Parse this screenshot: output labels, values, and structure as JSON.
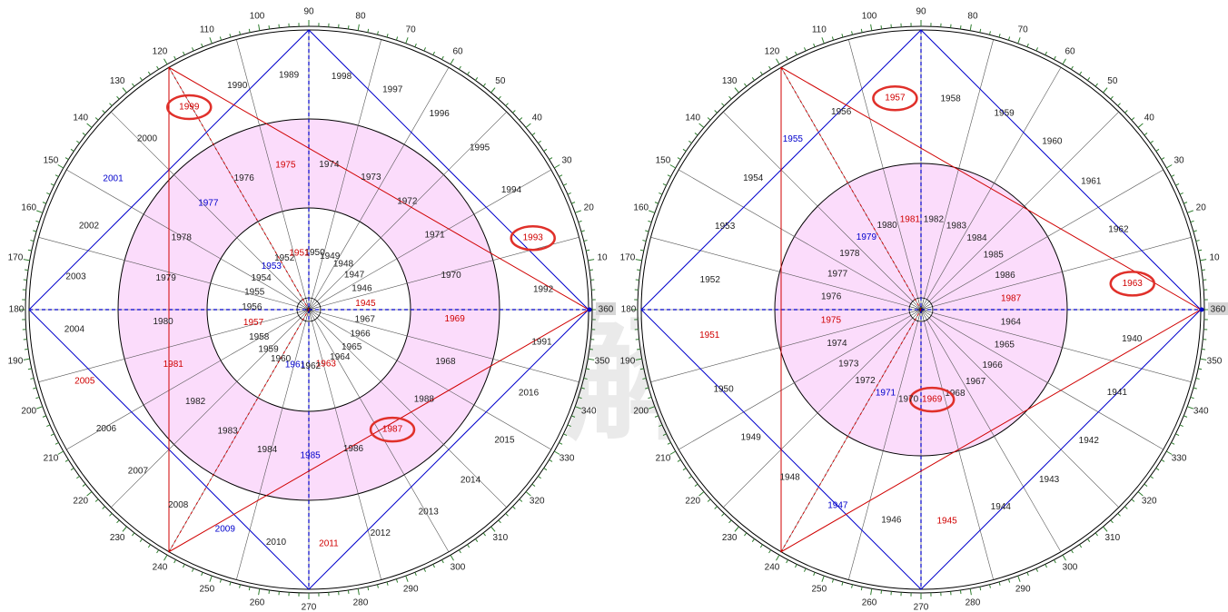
{
  "colors": {
    "black": "#222222",
    "red": "#d00000",
    "blue": "#0000cc",
    "pink_band": "#fbdcfb",
    "tick_green": "#2e7d2e",
    "highlight_ellipse": "#e0302a",
    "marker_bg": "#d6d6d6"
  },
  "watermark": "神臣解盘",
  "degree_labels": [
    "10",
    "20",
    "30",
    "40",
    "50",
    "60",
    "70",
    "80",
    "90",
    "100",
    "110",
    "120",
    "130",
    "140",
    "150",
    "160",
    "170",
    "180",
    "190",
    "200",
    "210",
    "220",
    "230",
    "240",
    "250",
    "260",
    "270",
    "280",
    "290",
    "300",
    "310",
    "320",
    "330",
    "340",
    "350",
    "360"
  ],
  "wheels": [
    {
      "name": "left-wheel",
      "marker_180": "180",
      "marker_360": "360",
      "highlight_years": [
        "1999",
        "1993",
        "1987"
      ],
      "outer_ring": [
        {
          "y": "1998",
          "c": "k"
        },
        {
          "y": "1997",
          "c": "k"
        },
        {
          "y": "1996",
          "c": "k"
        },
        {
          "y": "1995",
          "c": "k"
        },
        {
          "y": "1994",
          "c": "k"
        },
        {
          "y": "1993",
          "c": "r"
        },
        {
          "y": "1992",
          "c": "k"
        },
        {
          "y": "1991",
          "c": "k"
        },
        {
          "y": "2016",
          "c": "k"
        },
        {
          "y": "2015",
          "c": "k"
        },
        {
          "y": "2014",
          "c": "k"
        },
        {
          "y": "2013",
          "c": "k"
        },
        {
          "y": "2012",
          "c": "k"
        },
        {
          "y": "2011",
          "c": "r"
        },
        {
          "y": "2010",
          "c": "k"
        },
        {
          "y": "2009",
          "c": "b"
        },
        {
          "y": "2008",
          "c": "k"
        },
        {
          "y": "2007",
          "c": "k"
        },
        {
          "y": "2006",
          "c": "k"
        },
        {
          "y": "2005",
          "c": "r"
        },
        {
          "y": "2004",
          "c": "k"
        },
        {
          "y": "2003",
          "c": "k"
        },
        {
          "y": "2002",
          "c": "k"
        },
        {
          "y": "2001",
          "c": "b"
        },
        {
          "y": "2000",
          "c": "k"
        },
        {
          "y": "1999",
          "c": "r"
        },
        {
          "y": "1990",
          "c": "k"
        },
        {
          "y": "1989",
          "c": "k"
        }
      ],
      "middle_ring": [
        {
          "y": "1974",
          "c": "k"
        },
        {
          "y": "1973",
          "c": "k"
        },
        {
          "y": "1972",
          "c": "k"
        },
        {
          "y": "1971",
          "c": "k"
        },
        {
          "y": "1970",
          "c": "k"
        },
        {
          "y": "1969",
          "c": "r"
        },
        {
          "y": "1968",
          "c": "k"
        },
        {
          "y": "1988",
          "c": "k"
        },
        {
          "y": "1987",
          "c": "r"
        },
        {
          "y": "1986",
          "c": "k"
        },
        {
          "y": "1985",
          "c": "b"
        },
        {
          "y": "1984",
          "c": "k"
        },
        {
          "y": "1983",
          "c": "k"
        },
        {
          "y": "1982",
          "c": "k"
        },
        {
          "y": "1981",
          "c": "r"
        },
        {
          "y": "1980",
          "c": "k"
        },
        {
          "y": "1979",
          "c": "k"
        },
        {
          "y": "1978",
          "c": "k"
        },
        {
          "y": "1977",
          "c": "b"
        },
        {
          "y": "1976",
          "c": "k"
        },
        {
          "y": "1975",
          "c": "r"
        }
      ],
      "inner_ring": [
        {
          "y": "1950",
          "c": "k"
        },
        {
          "y": "1949",
          "c": "k"
        },
        {
          "y": "1948",
          "c": "k"
        },
        {
          "y": "1947",
          "c": "k"
        },
        {
          "y": "1946",
          "c": "k"
        },
        {
          "y": "1945",
          "c": "r"
        },
        {
          "y": "1967",
          "c": "k"
        },
        {
          "y": "1966",
          "c": "k"
        },
        {
          "y": "1965",
          "c": "k"
        },
        {
          "y": "1964",
          "c": "k"
        },
        {
          "y": "1963",
          "c": "r"
        },
        {
          "y": "1962",
          "c": "k"
        },
        {
          "y": "1961",
          "c": "b"
        },
        {
          "y": "1960",
          "c": "k"
        },
        {
          "y": "1959",
          "c": "k"
        },
        {
          "y": "1958",
          "c": "k"
        },
        {
          "y": "1957",
          "c": "r"
        },
        {
          "y": "1956",
          "c": "k"
        },
        {
          "y": "1955",
          "c": "k"
        },
        {
          "y": "1954",
          "c": "k"
        },
        {
          "y": "1953",
          "c": "b"
        },
        {
          "y": "1952",
          "c": "k"
        },
        {
          "y": "1951",
          "c": "r"
        }
      ]
    },
    {
      "name": "right-wheel",
      "marker_180": "180",
      "marker_360": "360",
      "highlight_years": [
        "1957",
        "1963",
        "1969"
      ],
      "outer_ring": [
        {
          "y": "1958",
          "c": "k"
        },
        {
          "y": "1959",
          "c": "k"
        },
        {
          "y": "1960",
          "c": "k"
        },
        {
          "y": "1961",
          "c": "k"
        },
        {
          "y": "1962",
          "c": "k"
        },
        {
          "y": "1963",
          "c": "r"
        },
        {
          "y": "1940",
          "c": "k"
        },
        {
          "y": "1941",
          "c": "k"
        },
        {
          "y": "1942",
          "c": "k"
        },
        {
          "y": "1943",
          "c": "k"
        },
        {
          "y": "1944",
          "c": "k"
        },
        {
          "y": "1945",
          "c": "r"
        },
        {
          "y": "1946",
          "c": "k"
        },
        {
          "y": "1947",
          "c": "b"
        },
        {
          "y": "1948",
          "c": "k"
        },
        {
          "y": "1949",
          "c": "k"
        },
        {
          "y": "1950",
          "c": "k"
        },
        {
          "y": "1951",
          "c": "r"
        },
        {
          "y": "1952",
          "c": "k"
        },
        {
          "y": "1953",
          "c": "k"
        },
        {
          "y": "1954",
          "c": "k"
        },
        {
          "y": "1955",
          "c": "b"
        },
        {
          "y": "1956",
          "c": "k"
        },
        {
          "y": "1957",
          "c": "r"
        }
      ],
      "middle_ring": [
        {
          "y": "1982",
          "c": "k"
        },
        {
          "y": "1983",
          "c": "k"
        },
        {
          "y": "1984",
          "c": "k"
        },
        {
          "y": "1985",
          "c": "k"
        },
        {
          "y": "1986",
          "c": "k"
        },
        {
          "y": "1987",
          "c": "r"
        },
        {
          "y": "1964",
          "c": "k"
        },
        {
          "y": "1965",
          "c": "k"
        },
        {
          "y": "1966",
          "c": "k"
        },
        {
          "y": "1967",
          "c": "k"
        },
        {
          "y": "1968",
          "c": "k"
        },
        {
          "y": "1969",
          "c": "r"
        },
        {
          "y": "1970",
          "c": "k"
        },
        {
          "y": "1971",
          "c": "b"
        },
        {
          "y": "1972",
          "c": "k"
        },
        {
          "y": "1973",
          "c": "k"
        },
        {
          "y": "1974",
          "c": "k"
        },
        {
          "y": "1975",
          "c": "r"
        },
        {
          "y": "1976",
          "c": "k"
        },
        {
          "y": "1977",
          "c": "k"
        },
        {
          "y": "1978",
          "c": "k"
        },
        {
          "y": "1979",
          "c": "b"
        },
        {
          "y": "1980",
          "c": "k"
        },
        {
          "y": "1981",
          "c": "r"
        }
      ]
    }
  ]
}
